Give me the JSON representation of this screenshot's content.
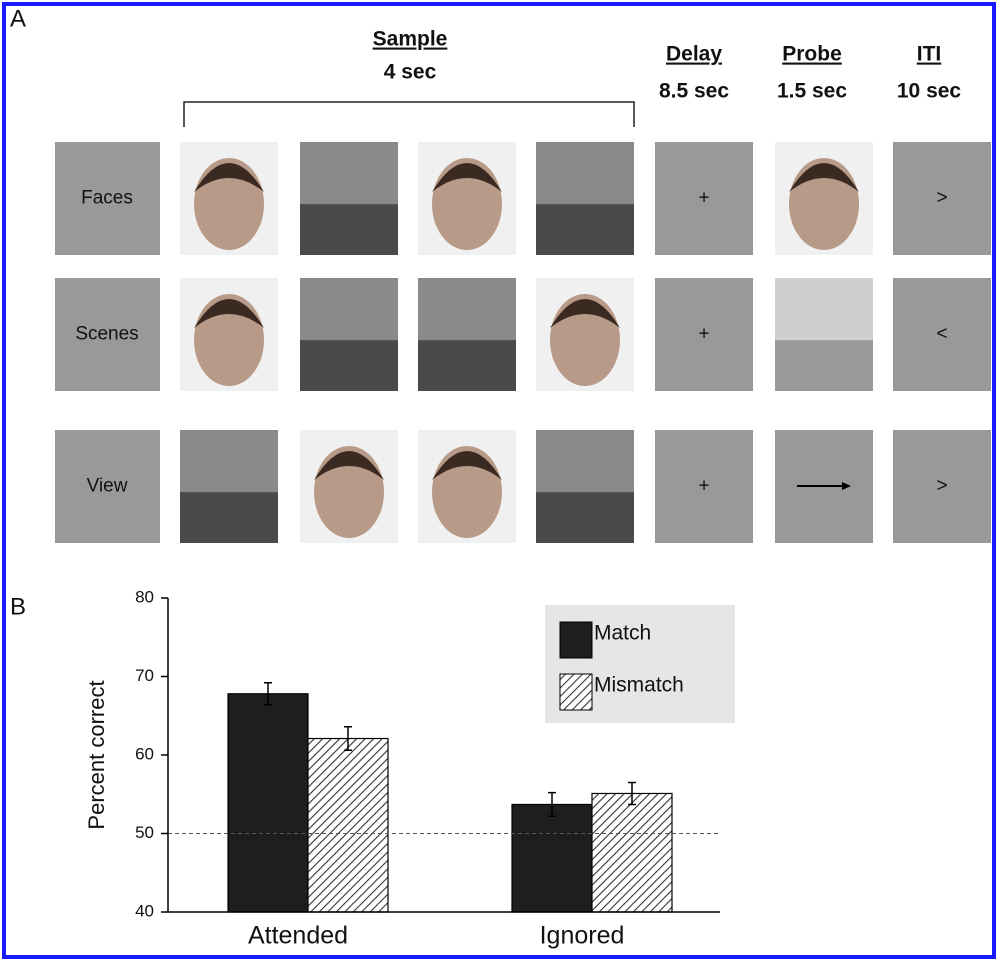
{
  "panel_a": {
    "label": "A",
    "columns": [
      {
        "name": "Sample",
        "duration": "4 sec"
      },
      {
        "name": "Delay",
        "duration": "8.5 sec"
      },
      {
        "name": "Probe",
        "duration": "1.5 sec"
      },
      {
        "name": "ITI",
        "duration": "10 sec"
      }
    ],
    "rows": [
      {
        "label": "Faces",
        "delay": "+",
        "iti": ">"
      },
      {
        "label": "Scenes",
        "delay": "+",
        "iti": "<"
      },
      {
        "label": "View",
        "delay": "+",
        "iti": ">"
      }
    ]
  },
  "chart_data": {
    "type": "bar",
    "panel_label": "B",
    "y_label": "Percent correct",
    "categories": [
      "Attended",
      "Ignored"
    ],
    "series": [
      {
        "name": "Match",
        "color": "#1e1e1e",
        "hatch": false,
        "values": [
          67.8,
          53.7
        ],
        "errors": [
          1.4,
          1.5
        ]
      },
      {
        "name": "Mismatch",
        "color": "#ffffff",
        "hatch": true,
        "values": [
          62.1,
          55.1
        ],
        "errors": [
          1.5,
          1.4
        ]
      }
    ],
    "ylim": [
      40,
      80
    ],
    "yticks": [
      40,
      50,
      60,
      70,
      80
    ],
    "reference_y": 50,
    "legend": "upper right"
  }
}
